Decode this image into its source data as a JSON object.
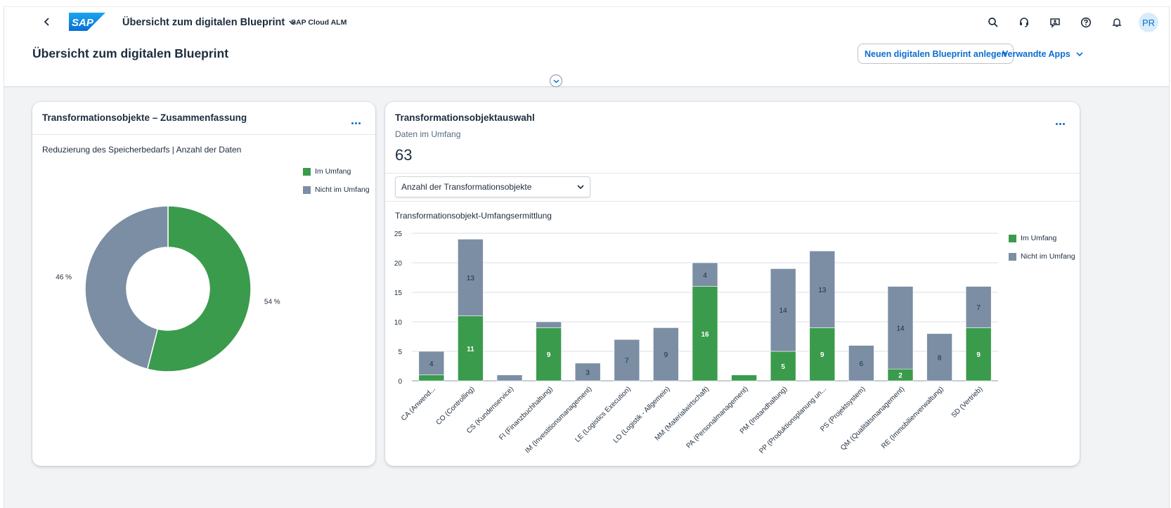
{
  "shell": {
    "app_title": "Übersicht zum digitalen Blueprint",
    "app_subtitle": "SAP Cloud ALM",
    "logo_text": "SAP",
    "avatar_initials": "PR",
    "icons": [
      "search-icon",
      "support-icon",
      "feedback-icon",
      "help-icon",
      "notifications-icon"
    ]
  },
  "page": {
    "title": "Übersicht zum digitalen Blueprint",
    "new_button": "Neuen digitalen Blueprint anlegen",
    "related_apps": "Verwandte Apps"
  },
  "card1": {
    "title": "Transformationsobjekte – Zusammenfassung",
    "subtitle": "Reduzierung des Speicherbedarfs | Anzahl der Daten",
    "legend": [
      "Im Umfang",
      "Nicht im Umfang"
    ]
  },
  "card2": {
    "title": "Transformationsobjektauswahl",
    "kpi_label": "Daten im Umfang",
    "kpi_value": "63",
    "select_value": "Anzahl der Transformationsobjekte",
    "chart_title": "Transformationsobjekt-Umfangsermittlung",
    "legend": [
      "Im Umfang",
      "Nicht im Umfang"
    ]
  },
  "colors": {
    "in_scope": "#3a9b4c",
    "not_in_scope": "#7b8ea4",
    "accent": "#0a6ed1"
  },
  "chart_data": [
    {
      "type": "pie",
      "variant": "donut",
      "title": "Reduzierung des Speicherbedarfs | Anzahl der Daten",
      "slices": [
        {
          "name": "Im Umfang",
          "value": 54,
          "label": "54 %"
        },
        {
          "name": "Nicht im Umfang",
          "value": 46,
          "label": "46 %"
        }
      ],
      "legend_position": "top-right"
    },
    {
      "type": "bar",
      "stacked": true,
      "title": "Transformationsobjekt-Umfangsermittlung",
      "categories": [
        "CA (Anwend...",
        "CO (Controlling)",
        "CS (Kundenservice)",
        "FI (Finanzbuchhaltung)",
        "IM (Investitionsmanagement)",
        "LE (Logistics Execution)",
        "LO (Logistik - Allgemein)",
        "MM (Materialwirtschaft)",
        "PA (Personalmanagement)",
        "PM (Instandhaltung)",
        "PP (Produktionsplanung un...",
        "PS (Projektsystem)",
        "QM (Qualitätsmanagement)",
        "RE (Immobilienverwaltung)",
        "SD (Vertrieb)"
      ],
      "series": [
        {
          "name": "Im Umfang",
          "values": [
            1,
            11,
            0,
            9,
            0,
            0,
            0,
            16,
            1,
            5,
            9,
            0,
            2,
            0,
            9
          ]
        },
        {
          "name": "Nicht im Umfang",
          "values": [
            4,
            13,
            1,
            1,
            3,
            7,
            9,
            4,
            0,
            14,
            13,
            6,
            14,
            8,
            7
          ]
        }
      ],
      "data_labels": {
        "Im Umfang": [
          "",
          "11",
          "",
          "9",
          "",
          "",
          "",
          "16",
          "",
          "5",
          "9",
          "",
          "2",
          "",
          "9"
        ],
        "Nicht im Umfang": [
          "4",
          "13",
          "",
          "",
          "3",
          "7",
          "9",
          "4",
          "",
          "14",
          "13",
          "6",
          "14",
          "8",
          "7"
        ]
      },
      "y_ticks": [
        0,
        5,
        10,
        15,
        20,
        25
      ],
      "ylim": [
        0,
        25
      ],
      "grid": true,
      "legend_position": "top-right"
    }
  ]
}
